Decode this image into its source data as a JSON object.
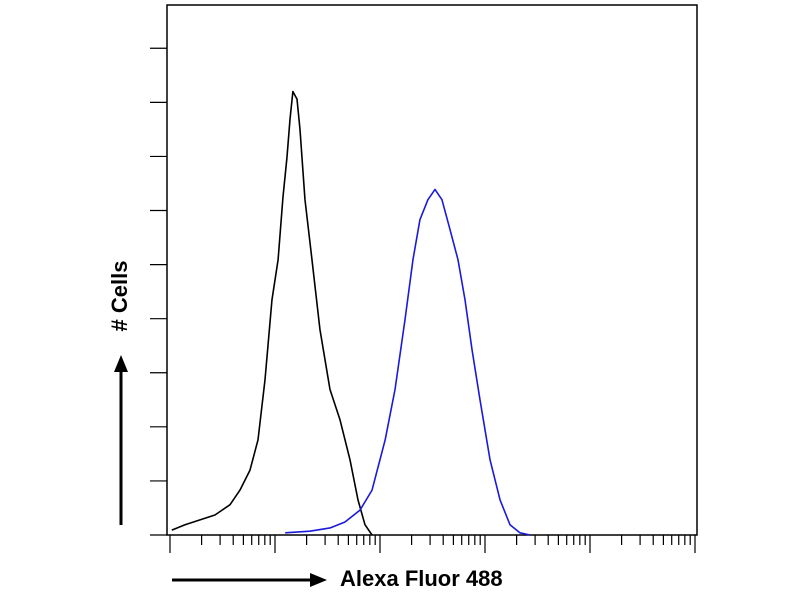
{
  "chart_data": {
    "type": "line",
    "x_label": "Alexa Fluor 488",
    "y_label": "# Cells",
    "xscale": "log",
    "xlim": [
      1,
      100000
    ],
    "xticks": [
      1,
      2,
      3,
      4,
      5,
      6,
      7,
      8,
      9,
      10,
      20,
      30,
      40,
      50,
      60,
      70,
      80,
      90,
      100,
      200,
      300,
      400,
      500,
      600,
      700,
      800,
      900,
      1000,
      2000,
      3000,
      4000,
      5000,
      6000,
      7000,
      8000,
      9000,
      10000,
      20000,
      30000,
      40000,
      50000,
      60000,
      70000,
      80000,
      90000,
      100000
    ],
    "ylim": [
      0,
      9.8
    ],
    "yticks": [
      0,
      1,
      2,
      3,
      4,
      5,
      6,
      7,
      8,
      9
    ],
    "series": [
      {
        "color": "#000000",
        "x": [
          1.04,
          1.39,
          1.93,
          2.68,
          3.73,
          4.64,
          5.78,
          6.89,
          8.03,
          9.36,
          10.7,
          11.9,
          13.0,
          13.9,
          14.8,
          16.2,
          17.3,
          19.3,
          22.5,
          26.8,
          33.4,
          41.6,
          51.8,
          61.7,
          71.9,
          84.0
        ],
        "values": [
          0.09,
          0.19,
          0.28,
          0.37,
          0.56,
          0.83,
          1.2,
          1.76,
          2.87,
          4.35,
          5.09,
          6.24,
          6.98,
          7.69,
          8.2,
          8.06,
          7.5,
          6.2,
          5.09,
          3.8,
          2.69,
          2.13,
          1.39,
          0.65,
          0.19,
          0
        ]
      },
      {
        "color": "#1a1adb",
        "x": [
          12.5,
          21.5,
          33.4,
          46.4,
          64.5,
          84.0,
          112,
          139,
          173,
          206,
          240,
          286,
          334,
          389,
          464,
          553,
          645,
          752,
          896,
          1117,
          1390,
          1730,
          2155,
          2685
        ],
        "values": [
          0.04,
          0.07,
          0.13,
          0.24,
          0.46,
          0.83,
          1.76,
          2.69,
          3.98,
          5.09,
          5.83,
          6.2,
          6.39,
          6.2,
          5.65,
          5.09,
          4.35,
          3.43,
          2.5,
          1.39,
          0.65,
          0.19,
          0.04,
          0
        ]
      }
    ]
  }
}
